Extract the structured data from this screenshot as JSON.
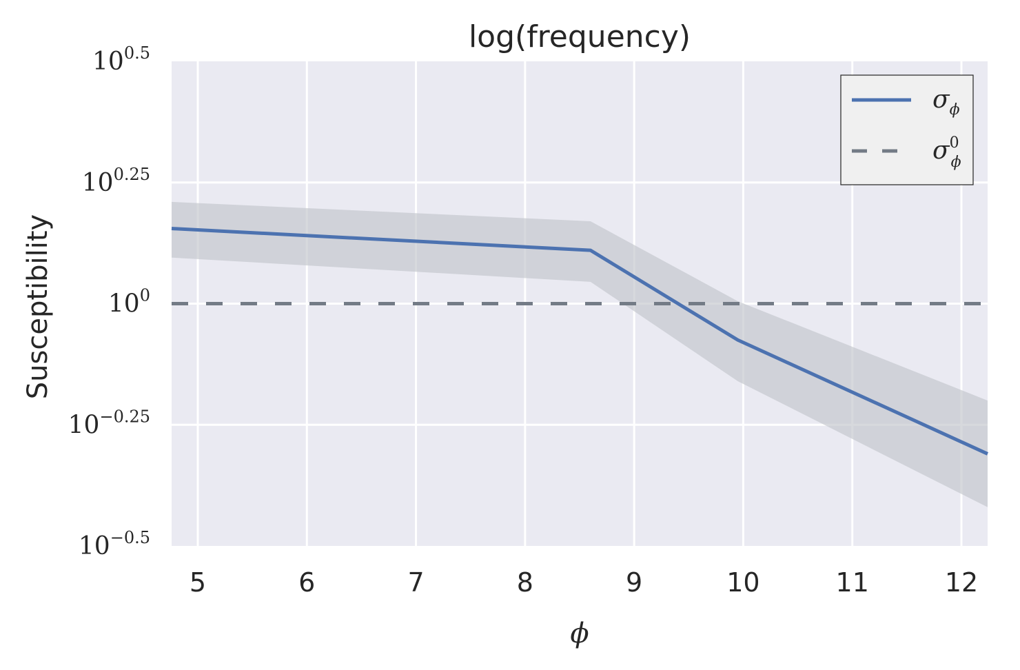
{
  "chart_data": {
    "type": "line",
    "title": "log(frequency)",
    "xlabel": "ϕ",
    "ylabel": "Susceptibility",
    "yscale": "log10",
    "xlim": [
      4.76,
      12.24
    ],
    "ylim_log10": [
      -0.5,
      0.5
    ],
    "xticks": [
      5,
      6,
      7,
      8,
      9,
      10,
      11,
      12
    ],
    "xtick_labels": [
      "5",
      "6",
      "7",
      "8",
      "9",
      "10",
      "11",
      "12"
    ],
    "yticks": [
      {
        "value_log10": 0.5,
        "base": "10",
        "exp": "0.5"
      },
      {
        "value_log10": 0.25,
        "base": "10",
        "exp": "0.25"
      },
      {
        "value_log10": 0,
        "base": "10",
        "exp": "0"
      },
      {
        "value_log10": -0.25,
        "base": "10",
        "exp": "−0.25"
      },
      {
        "value_log10": -0.5,
        "base": "10",
        "exp": "−0.5"
      }
    ],
    "grid": true,
    "legend_position": "top-right",
    "series": [
      {
        "name": "σ",
        "name_sub": "ϕ",
        "name_sup": "",
        "style": "solid",
        "color": "#4c72b0",
        "x": [
          4.76,
          8.6,
          9.95,
          12.24
        ],
        "y_log10": [
          0.155,
          0.11,
          -0.075,
          -0.31
        ],
        "band_lower_log10": [
          0.095,
          0.045,
          -0.16,
          -0.42
        ],
        "band_upper_log10": [
          0.21,
          0.17,
          0.005,
          -0.2
        ]
      },
      {
        "name": "σ",
        "name_sub": "ϕ",
        "name_sup": "0",
        "style": "dashed",
        "color": "#737b86",
        "x": [
          4.76,
          12.24
        ],
        "y_log10": [
          0,
          0
        ]
      }
    ],
    "colors": {
      "plot_background": "#eaeaf2",
      "grid": "#ffffff",
      "band": "#c2c4cb",
      "legend_background": "#f0f0f0"
    }
  }
}
